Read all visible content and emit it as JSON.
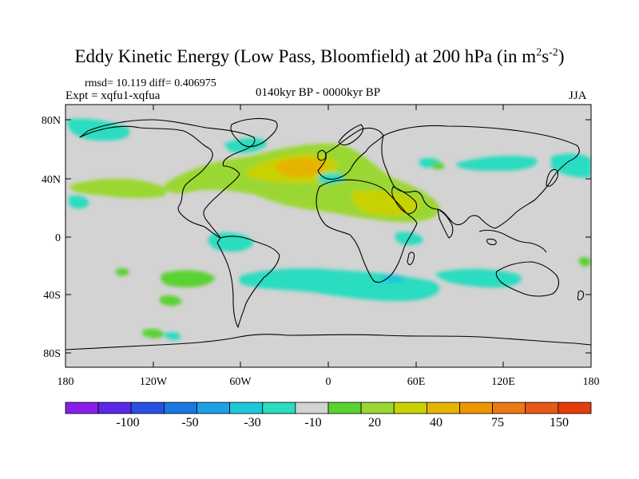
{
  "title": {
    "main": "Eddy Kinetic Energy (Low Pass, Bloomfield) at 200 hPa (in m",
    "unit_exp1": "2",
    "unit_s": "s",
    "unit_exp2": "-2",
    "close": ")"
  },
  "stats": "rmsd= 10.119 diff= 0.406975",
  "experiment": "Expt = xqfu1-xqfua",
  "period": "0140kyr BP - 0000kyr BP",
  "season": "JJA",
  "map": {
    "type": "contour-fill world map",
    "projection": "cylindrical equidistant",
    "x_range": [
      -180,
      180
    ],
    "y_range": [
      -90,
      90
    ],
    "x_tick_labels": [
      "180",
      "120W",
      "60W",
      "0",
      "60E",
      "120E",
      "180"
    ],
    "y_tick_labels": [
      "80N",
      "40N",
      "0",
      "40S",
      "80S"
    ],
    "background_color": "#d3d3d3",
    "coastline_color": "#000000"
  },
  "colorbar": {
    "colors": [
      "#8a1ee8",
      "#5a28e6",
      "#2850e6",
      "#1a78e0",
      "#1ea0e6",
      "#1ec8dc",
      "#2adcc0",
      "#d3d3d3",
      "#5ad232",
      "#9bd732",
      "#c8d200",
      "#e6b400",
      "#f09600",
      "#eb7814",
      "#e65a14",
      "#e63c0a"
    ],
    "labels": [
      "-100",
      "-50",
      "-30",
      "-10",
      "20",
      "40",
      "75",
      "150"
    ]
  }
}
